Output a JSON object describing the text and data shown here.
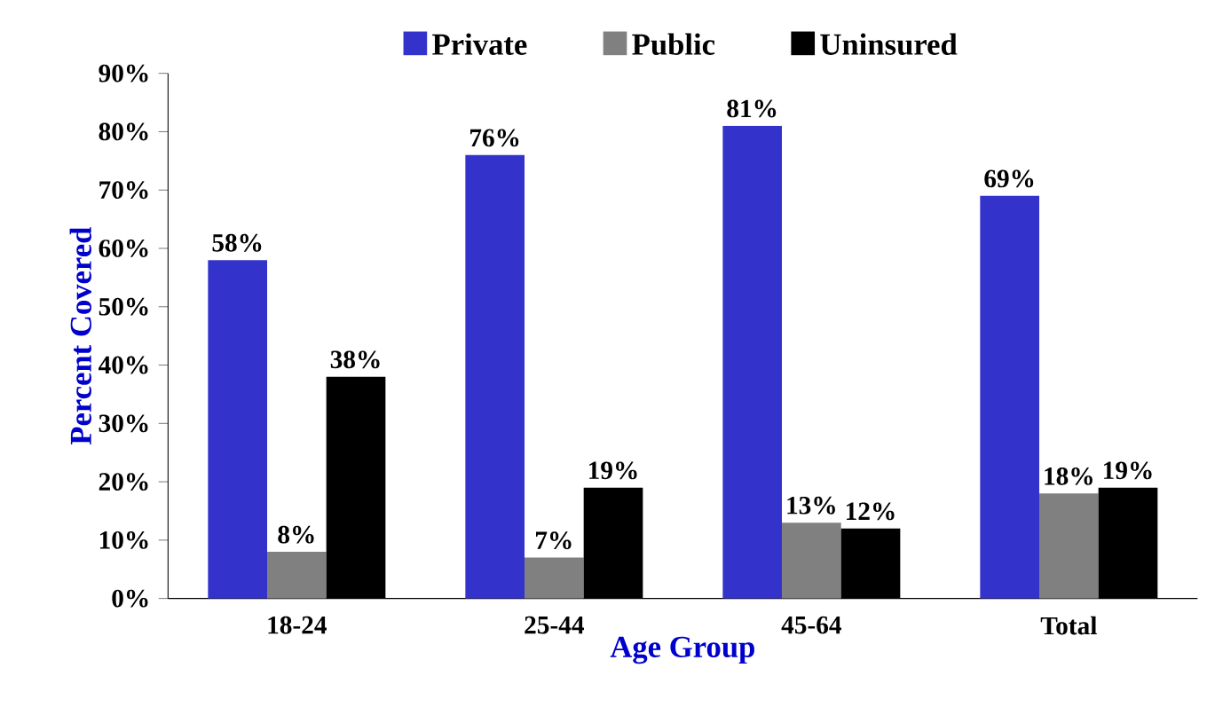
{
  "chart_data": {
    "type": "bar",
    "xlabel": "Age Group",
    "ylabel": "Percent Covered",
    "categories": [
      "18-24",
      "25-44",
      "45-64",
      "Total"
    ],
    "series": [
      {
        "name": "Private",
        "color": "#3333cc",
        "values": [
          58,
          76,
          81,
          69
        ],
        "value_labels": [
          "58%",
          "76%",
          "81%",
          "69%"
        ]
      },
      {
        "name": "Public",
        "color": "#808080",
        "values": [
          8,
          7,
          13,
          18
        ],
        "value_labels": [
          "8%",
          "7%",
          "13%",
          "18%"
        ]
      },
      {
        "name": "Uninsured",
        "color": "#000000",
        "values": [
          38,
          19,
          12,
          19
        ],
        "value_labels": [
          "38%",
          "19%",
          "12%",
          "19%"
        ]
      }
    ],
    "ylim": [
      0,
      90
    ],
    "yticks": [
      {
        "value": 0,
        "label": "0%"
      },
      {
        "value": 10,
        "label": "10%"
      },
      {
        "value": 20,
        "label": "20%"
      },
      {
        "value": 30,
        "label": "30%"
      },
      {
        "value": 40,
        "label": "40%"
      },
      {
        "value": 50,
        "label": "50%"
      },
      {
        "value": 60,
        "label": "60%"
      },
      {
        "value": 70,
        "label": "70%"
      },
      {
        "value": 80,
        "label": "80%"
      },
      {
        "value": 90,
        "label": "90%"
      }
    ],
    "legend": "top",
    "grid": false
  }
}
